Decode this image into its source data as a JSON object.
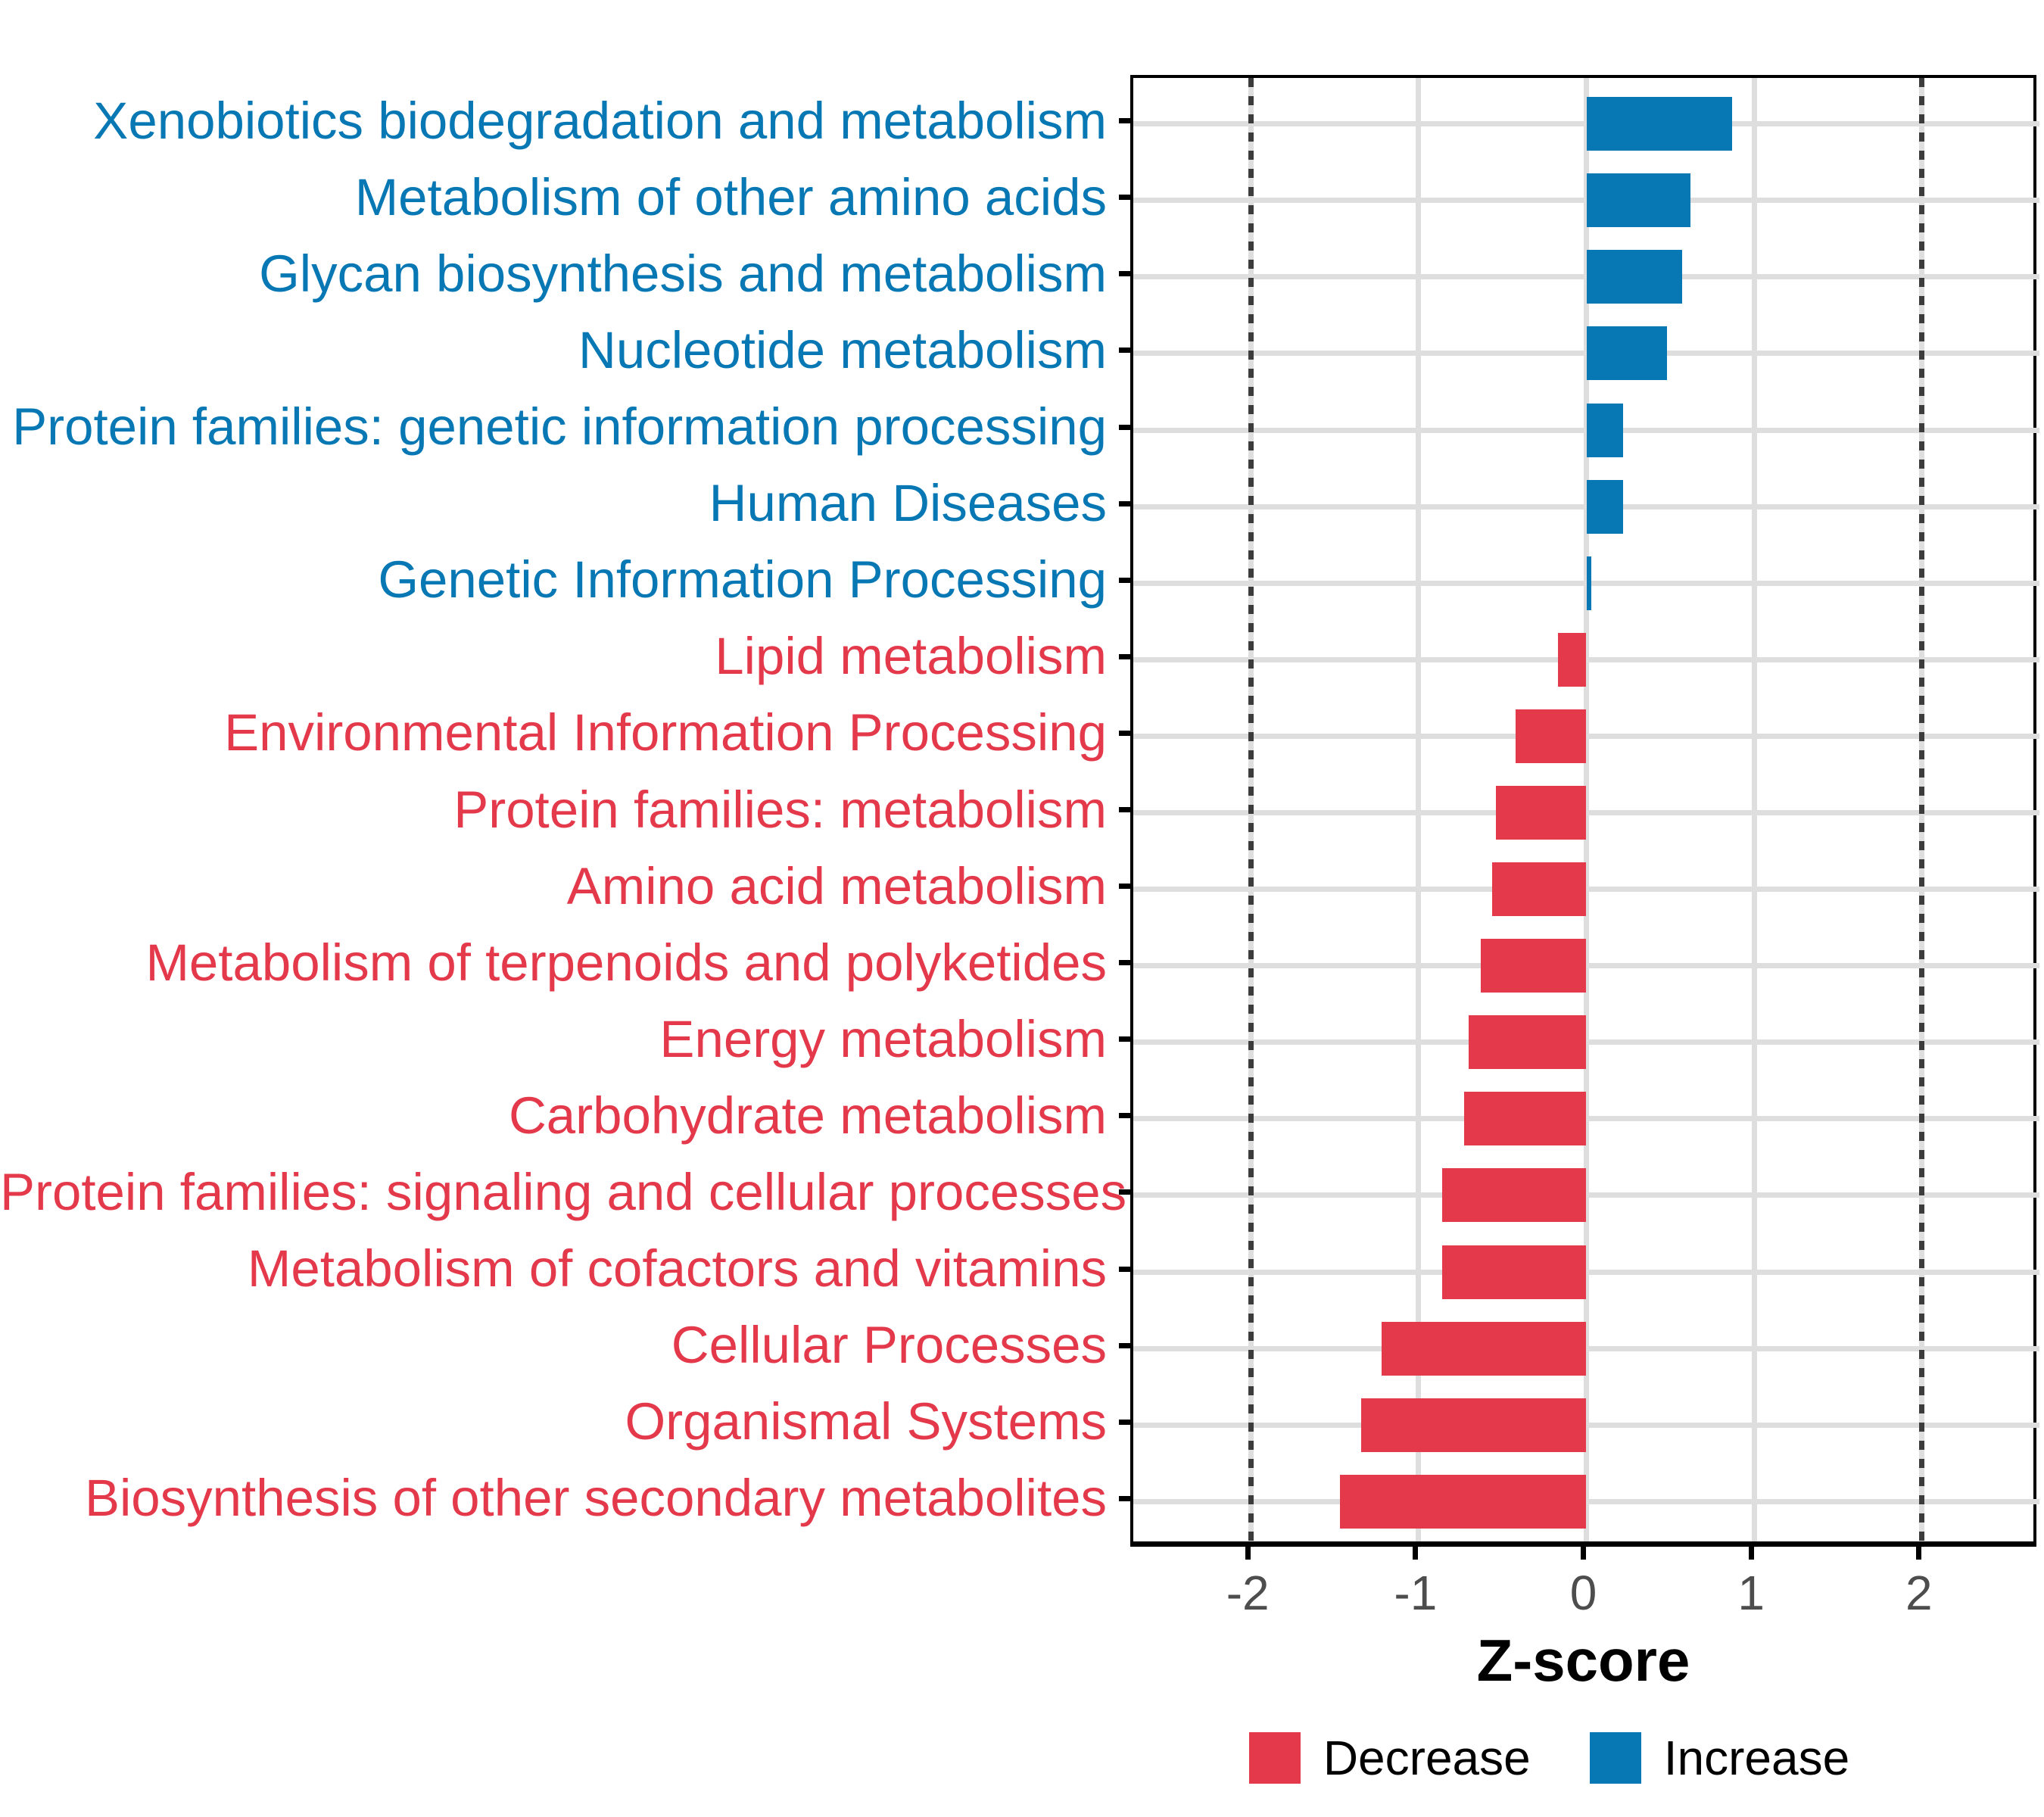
{
  "chart_data": {
    "type": "bar",
    "orientation": "horizontal",
    "xlabel": "Z-score",
    "xlim": [
      -2.7,
      2.7
    ],
    "x_ticks": [
      -2,
      -1,
      0,
      1,
      2
    ],
    "x_tick_labels": [
      "-2",
      "-1",
      "0",
      "1",
      "2"
    ],
    "dotted_reference_lines": [
      -2,
      2
    ],
    "grid": "major-on",
    "legend_position": "bottom",
    "categories": [
      {
        "label": "Xenobiotics biodegradation and metabolism",
        "value": 0.87,
        "group": "increase"
      },
      {
        "label": "Metabolism of other amino acids",
        "value": 0.62,
        "group": "increase"
      },
      {
        "label": "Glycan biosynthesis and metabolism",
        "value": 0.57,
        "group": "increase"
      },
      {
        "label": "Nucleotide metabolism",
        "value": 0.48,
        "group": "increase"
      },
      {
        "label": "Protein families: genetic information processing",
        "value": 0.22,
        "group": "increase"
      },
      {
        "label": "Human Diseases",
        "value": 0.22,
        "group": "increase"
      },
      {
        "label": "Genetic Information Processing",
        "value": 0.03,
        "group": "increase"
      },
      {
        "label": "Lipid metabolism",
        "value": -0.17,
        "group": "decrease"
      },
      {
        "label": "Environmental Information Processing",
        "value": -0.42,
        "group": "decrease"
      },
      {
        "label": "Protein families: metabolism",
        "value": -0.54,
        "group": "decrease"
      },
      {
        "label": "Amino acid metabolism",
        "value": -0.56,
        "group": "decrease"
      },
      {
        "label": "Metabolism of terpenoids and polyketides",
        "value": -0.63,
        "group": "decrease"
      },
      {
        "label": "Energy metabolism",
        "value": -0.7,
        "group": "decrease"
      },
      {
        "label": "Carbohydrate metabolism",
        "value": -0.73,
        "group": "decrease"
      },
      {
        "label": "Protein families: signaling and cellular processes",
        "value": -0.86,
        "group": "decrease"
      },
      {
        "label": "Metabolism of cofactors and vitamins",
        "value": -0.86,
        "group": "decrease"
      },
      {
        "label": "Cellular Processes",
        "value": -1.22,
        "group": "decrease"
      },
      {
        "label": "Organismal Systems",
        "value": -1.34,
        "group": "decrease"
      },
      {
        "label": "Biosynthesis of other secondary metabolites",
        "value": -1.47,
        "group": "decrease"
      }
    ],
    "colors": {
      "increase": "#0778b4",
      "decrease": "#e4394b",
      "grid": "#dedede",
      "dotted_line": "#3c3c3c",
      "tick_label": "#4d4d4d",
      "axis": "#000000"
    },
    "legend": {
      "entries": [
        {
          "label": "Decrease",
          "group": "decrease",
          "color": "#e4394b"
        },
        {
          "label": "Increase",
          "group": "increase",
          "color": "#0778b4"
        }
      ]
    }
  }
}
